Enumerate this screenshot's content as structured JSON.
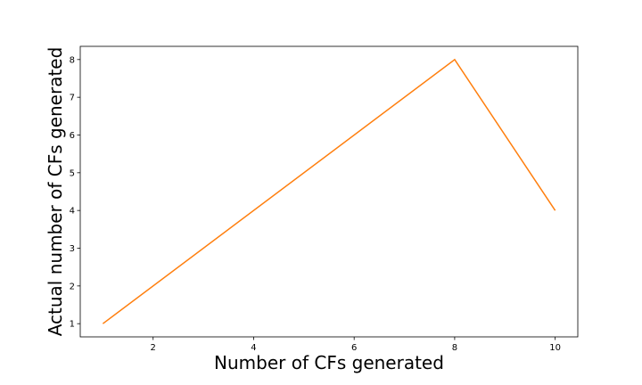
{
  "chart_data": {
    "type": "line",
    "title": "",
    "xlabel": "Number of CFs generated",
    "ylabel": "Actual number of CFs generated",
    "xlim": [
      0.55,
      10.45
    ],
    "ylim": [
      0.65,
      8.35
    ],
    "xticks": [
      2,
      4,
      6,
      8,
      10
    ],
    "yticks": [
      1,
      2,
      3,
      4,
      5,
      6,
      7,
      8
    ],
    "grid": false,
    "series": [
      {
        "color": "#ff7f0e",
        "x": [
          1,
          8,
          10
        ],
        "y": [
          1,
          8,
          4
        ]
      }
    ]
  }
}
